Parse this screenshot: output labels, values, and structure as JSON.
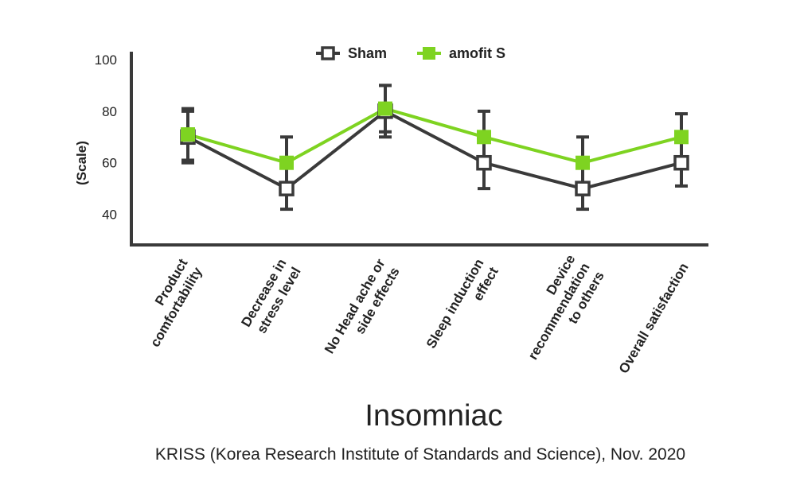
{
  "chart_data": {
    "type": "line",
    "title": "Insomniac",
    "source": "KRISS (Korea Research Institute of Standards and Science), Nov. 2020",
    "ylabel": "(Scale)",
    "xlabel": "",
    "ylim": [
      30,
      100
    ],
    "yticks": [
      40,
      60,
      80,
      100
    ],
    "grid": false,
    "legend": "top-center",
    "categories": [
      [
        "Product",
        "comfortability"
      ],
      [
        "Decrease in",
        "stress level"
      ],
      [
        "No Head ache or",
        "side effects"
      ],
      [
        "Sleep induction",
        "effect"
      ],
      [
        "Device",
        "recommendation",
        "to others"
      ],
      [
        "Overall satisfaction"
      ]
    ],
    "series": [
      {
        "name": "Sham",
        "color": "#3a3a3a",
        "marker": "hollow-square",
        "values": [
          70,
          50,
          80,
          60,
          50,
          60
        ],
        "error": [
          10,
          8,
          10,
          10,
          8,
          9
        ]
      },
      {
        "name": "amofit S",
        "color": "#7ed321",
        "marker": "filled-square",
        "values": [
          71,
          60,
          81,
          70,
          60,
          70
        ],
        "error": [
          10,
          10,
          9,
          10,
          10,
          9
        ]
      }
    ]
  }
}
